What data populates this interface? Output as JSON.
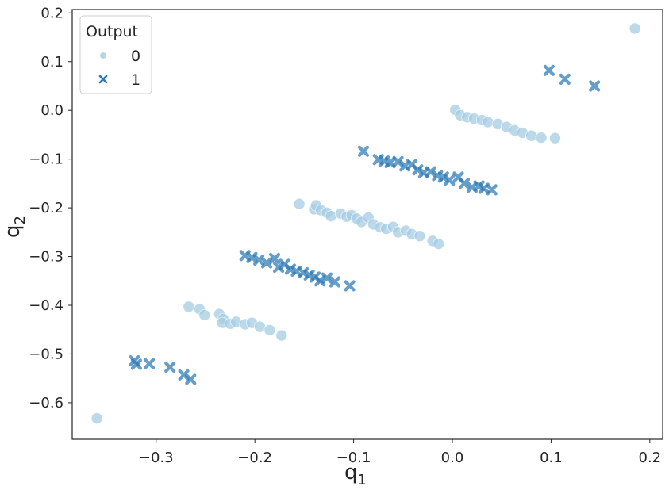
{
  "chart_data": {
    "type": "scatter",
    "title": "",
    "xlabel": "q",
    "xlabel_sub": "1",
    "ylabel": "q",
    "ylabel_sub": "2",
    "xlim": [
      -0.385,
      0.213
    ],
    "ylim": [
      -0.675,
      0.207
    ],
    "xticks": [
      -0.3,
      -0.2,
      -0.1,
      0.0,
      0.1,
      0.2
    ],
    "xtick_labels": [
      "−0.3",
      "−0.2",
      "−0.1",
      "0.0",
      "0.1",
      "0.2"
    ],
    "yticks": [
      0.2,
      0.1,
      0.0,
      -0.1,
      -0.2,
      -0.3,
      -0.4,
      -0.5,
      -0.6
    ],
    "ytick_labels": [
      "0.2",
      "0.1",
      "0.0",
      "−0.1",
      "−0.2",
      "−0.3",
      "−0.4",
      "−0.5",
      "−0.6"
    ],
    "grid": false,
    "legend": {
      "title": "Output",
      "placement": "top-left",
      "entries": [
        {
          "label": "0",
          "marker": "circle",
          "color": "#a6cce3"
        },
        {
          "label": "1",
          "marker": "x",
          "color": "#2a78b4"
        }
      ]
    },
    "series": [
      {
        "name": "0",
        "marker": "circle",
        "color": "#a6cce3",
        "points": [
          [
            -0.36,
            -0.632
          ],
          [
            -0.267,
            -0.403
          ],
          [
            -0.256,
            -0.408
          ],
          [
            -0.251,
            -0.42
          ],
          [
            -0.236,
            -0.418
          ],
          [
            -0.232,
            -0.428
          ],
          [
            -0.233,
            -0.436
          ],
          [
            -0.225,
            -0.438
          ],
          [
            -0.219,
            -0.434
          ],
          [
            -0.21,
            -0.439
          ],
          [
            -0.203,
            -0.436
          ],
          [
            -0.195,
            -0.444
          ],
          [
            -0.185,
            -0.451
          ],
          [
            -0.173,
            -0.462
          ],
          [
            -0.155,
            -0.192
          ],
          [
            -0.14,
            -0.203
          ],
          [
            -0.138,
            -0.195
          ],
          [
            -0.133,
            -0.205
          ],
          [
            -0.127,
            -0.21
          ],
          [
            -0.123,
            -0.217
          ],
          [
            -0.113,
            -0.212
          ],
          [
            -0.107,
            -0.218
          ],
          [
            -0.102,
            -0.215
          ],
          [
            -0.097,
            -0.222
          ],
          [
            -0.092,
            -0.229
          ],
          [
            -0.085,
            -0.22
          ],
          [
            -0.08,
            -0.234
          ],
          [
            -0.073,
            -0.24
          ],
          [
            -0.067,
            -0.243
          ],
          [
            -0.06,
            -0.239
          ],
          [
            -0.055,
            -0.25
          ],
          [
            -0.047,
            -0.247
          ],
          [
            -0.041,
            -0.254
          ],
          [
            -0.033,
            -0.258
          ],
          [
            -0.02,
            -0.268
          ],
          [
            -0.014,
            -0.274
          ],
          [
            0.003,
            0.001
          ],
          [
            0.008,
            -0.01
          ],
          [
            0.015,
            -0.014
          ],
          [
            0.022,
            -0.017
          ],
          [
            0.03,
            -0.02
          ],
          [
            0.036,
            -0.024
          ],
          [
            0.046,
            -0.028
          ],
          [
            0.055,
            -0.034
          ],
          [
            0.063,
            -0.041
          ],
          [
            0.071,
            -0.046
          ],
          [
            0.08,
            -0.052
          ],
          [
            0.09,
            -0.056
          ],
          [
            0.104,
            -0.057
          ]
        ]
      },
      {
        "name": "1",
        "marker": "x",
        "color": "#2a78b4",
        "points": [
          [
            -0.322,
            -0.514
          ],
          [
            -0.32,
            -0.521
          ],
          [
            -0.307,
            -0.52
          ],
          [
            -0.286,
            -0.527
          ],
          [
            -0.272,
            -0.543
          ],
          [
            -0.265,
            -0.552
          ],
          [
            -0.21,
            -0.298
          ],
          [
            -0.203,
            -0.302
          ],
          [
            -0.196,
            -0.307
          ],
          [
            -0.188,
            -0.313
          ],
          [
            -0.18,
            -0.304
          ],
          [
            -0.176,
            -0.322
          ],
          [
            -0.17,
            -0.316
          ],
          [
            -0.164,
            -0.326
          ],
          [
            -0.158,
            -0.33
          ],
          [
            -0.151,
            -0.333
          ],
          [
            -0.145,
            -0.338
          ],
          [
            -0.139,
            -0.342
          ],
          [
            -0.134,
            -0.35
          ],
          [
            -0.127,
            -0.344
          ],
          [
            -0.119,
            -0.352
          ],
          [
            -0.104,
            -0.36
          ],
          [
            -0.09,
            -0.084
          ],
          [
            -0.075,
            -0.101
          ],
          [
            -0.069,
            -0.104
          ],
          [
            -0.063,
            -0.107
          ],
          [
            -0.055,
            -0.105
          ],
          [
            -0.048,
            -0.114
          ],
          [
            -0.041,
            -0.111
          ],
          [
            -0.035,
            -0.122
          ],
          [
            -0.029,
            -0.128
          ],
          [
            -0.022,
            -0.126
          ],
          [
            -0.015,
            -0.134
          ],
          [
            -0.009,
            -0.137
          ],
          [
            -0.003,
            -0.143
          ],
          [
            0.006,
            -0.137
          ],
          [
            0.012,
            -0.15
          ],
          [
            0.02,
            -0.158
          ],
          [
            0.027,
            -0.155
          ],
          [
            0.032,
            -0.16
          ],
          [
            0.04,
            -0.163
          ],
          [
            0.098,
            0.082
          ],
          [
            0.114,
            0.064
          ],
          [
            0.144,
            0.05
          ]
        ]
      }
    ],
    "outlier_point": {
      "x": 0.185,
      "y": 0.168,
      "series": "0"
    }
  }
}
